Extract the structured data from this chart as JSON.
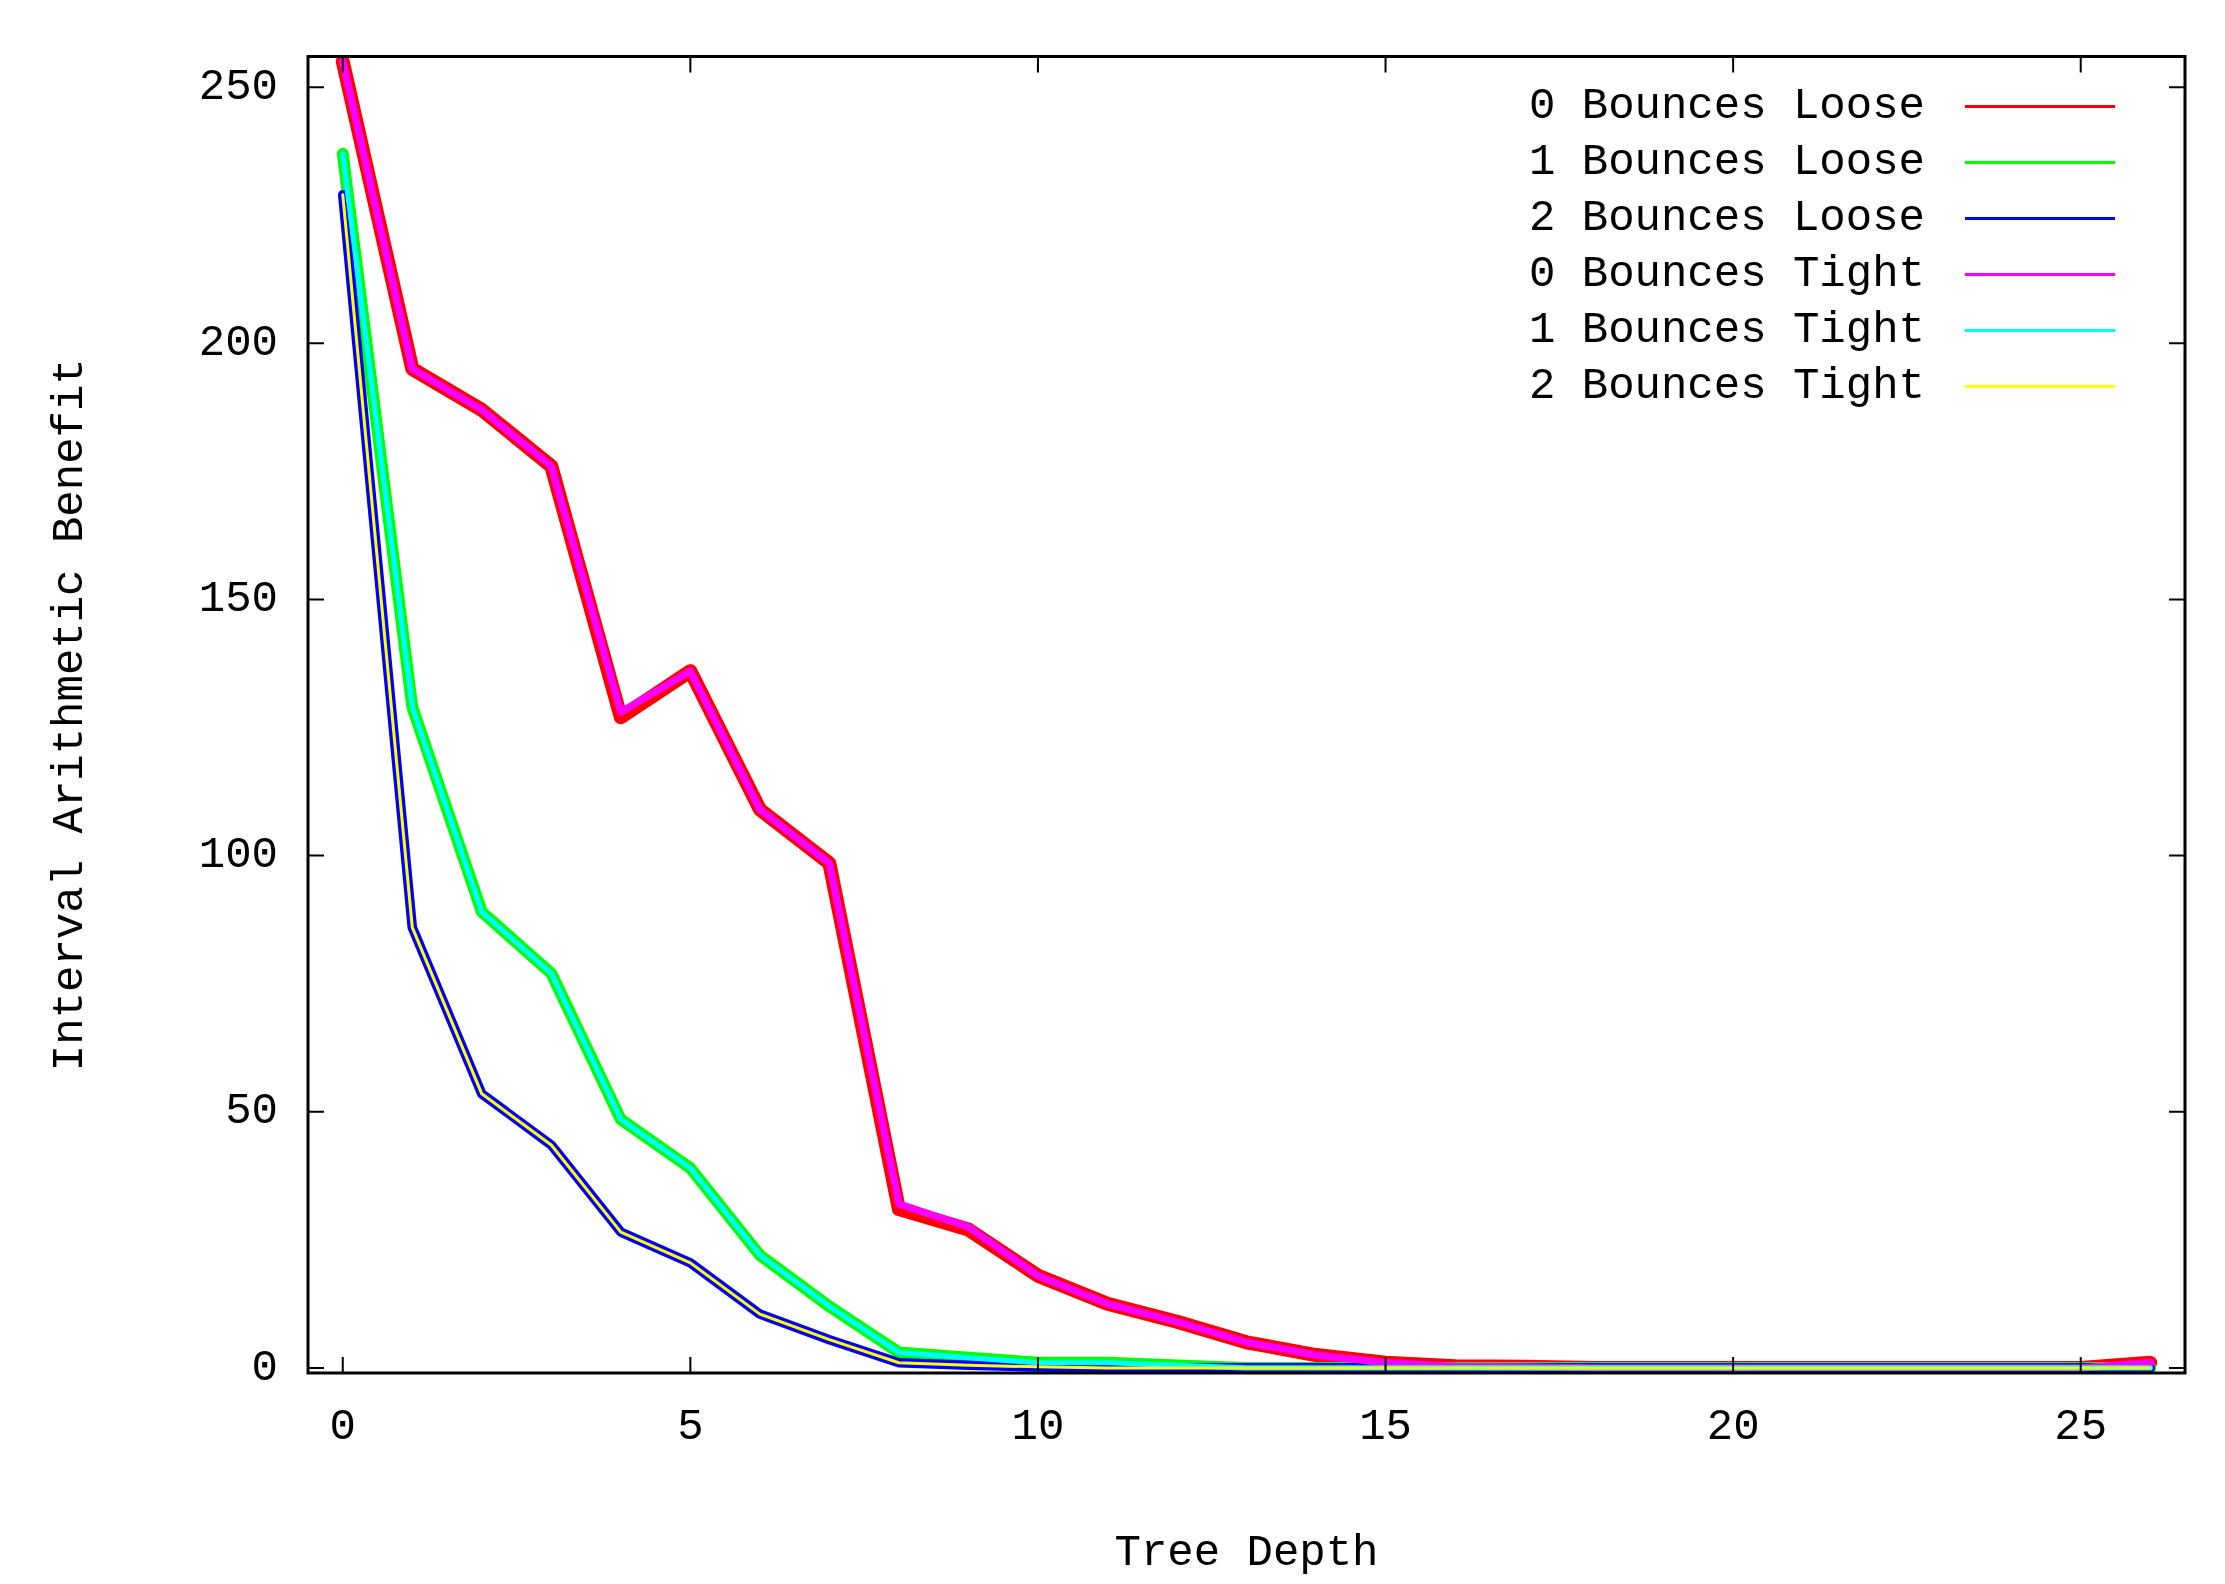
{
  "chart_data": {
    "type": "line",
    "xlabel": "Tree Depth",
    "ylabel": "Interval Arithmetic Benefit",
    "x": [
      0,
      1,
      2,
      3,
      4,
      5,
      6,
      7,
      8,
      9,
      10,
      11,
      12,
      13,
      14,
      15,
      16,
      17,
      18,
      19,
      20,
      21,
      22,
      23,
      24,
      25,
      26
    ],
    "xlim": [
      -0.5,
      26.5
    ],
    "xticks": [
      0,
      5,
      10,
      15,
      20,
      25
    ],
    "ylim": [
      -1,
      256
    ],
    "yticks": [
      0,
      50,
      100,
      150,
      200,
      250
    ],
    "grid": false,
    "legend": "top right",
    "marker": "none",
    "line_style": "solid",
    "series": [
      {
        "name": "0 Bounces Loose",
        "color": "#ff0000",
        "values": [
          255,
          195,
          187,
          176,
          127,
          136,
          109,
          98.5,
          31,
          27,
          18,
          12.5,
          9,
          5,
          2.5,
          1,
          0.3,
          0.2,
          0,
          0,
          0,
          0,
          0,
          0,
          0,
          0,
          1
        ]
      },
      {
        "name": "1 Bounces Loose",
        "color": "#00ff00",
        "values": [
          237,
          129,
          89,
          77,
          48.5,
          39,
          22,
          12,
          3,
          2,
          1,
          1,
          0.5,
          0,
          0,
          0,
          0,
          0,
          0,
          0,
          0,
          0,
          0,
          0,
          0,
          0,
          0
        ]
      },
      {
        "name": "2 Bounces Loose",
        "color": "#0000ff",
        "values": [
          229,
          86,
          53.5,
          43.5,
          26.5,
          20.5,
          10.5,
          5.5,
          1,
          0.5,
          0.2,
          0,
          0,
          0,
          0,
          0,
          0,
          0,
          0,
          0,
          0,
          0,
          0,
          0,
          0,
          0,
          0
        ]
      },
      {
        "name": "0 Bounces Tight",
        "color": "#ff00ff",
        "values": [
          255,
          195,
          187,
          176,
          128,
          136,
          109,
          98.5,
          32,
          27.5,
          18,
          12.5,
          9,
          5,
          2.5,
          1,
          0.3,
          0.2,
          0,
          0,
          0,
          0,
          0,
          0,
          0,
          0,
          1
        ]
      },
      {
        "name": "1 Bounces Tight",
        "color": "#00ffff",
        "values": [
          237,
          129,
          89,
          77,
          48.5,
          39,
          22,
          12,
          3,
          2,
          1,
          1,
          0.5,
          0,
          0,
          0,
          0,
          0,
          0,
          0,
          0,
          0,
          0,
          0,
          0,
          0,
          0
        ]
      },
      {
        "name": "2 Bounces Tight",
        "color": "#ffff00",
        "values": [
          229,
          86,
          53.5,
          43.5,
          26.5,
          20.5,
          10.5,
          5.5,
          1,
          0.5,
          0.2,
          0,
          0,
          0,
          0,
          0,
          0,
          0,
          0,
          0,
          0,
          0,
          0,
          0,
          0,
          0,
          0
        ]
      }
    ]
  }
}
